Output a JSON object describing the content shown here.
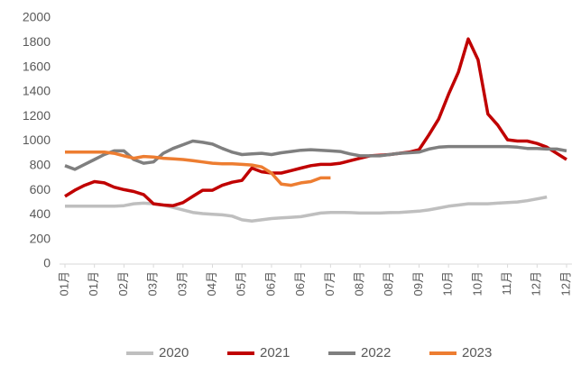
{
  "chart_data": {
    "type": "line",
    "categories": [
      "01月",
      null,
      null,
      "01月",
      null,
      null,
      "02月",
      null,
      null,
      "03月",
      null,
      null,
      "03月",
      null,
      null,
      "04月",
      null,
      null,
      "05月",
      null,
      null,
      "06月",
      null,
      null,
      "06月",
      null,
      null,
      "07月",
      null,
      null,
      "08月",
      null,
      null,
      "08月",
      null,
      null,
      "09月",
      null,
      null,
      "10月",
      null,
      null,
      "10月",
      null,
      null,
      "11月",
      null,
      null,
      "12月",
      null,
      null,
      "12月"
    ],
    "series": [
      {
        "name": "2020",
        "color": "#bfbfbf",
        "values": [
          470,
          470,
          470,
          470,
          470,
          470,
          475,
          490,
          495,
          490,
          480,
          460,
          440,
          420,
          410,
          405,
          400,
          390,
          360,
          350,
          360,
          370,
          375,
          380,
          385,
          400,
          415,
          420,
          420,
          418,
          415,
          415,
          415,
          418,
          420,
          425,
          430,
          440,
          455,
          470,
          480,
          490,
          490,
          490,
          495,
          500,
          505,
          515,
          530,
          545,
          null,
          null
        ]
      },
      {
        "name": "2021",
        "color": "#c00000",
        "values": [
          550,
          600,
          640,
          670,
          660,
          625,
          605,
          590,
          565,
          490,
          480,
          475,
          500,
          550,
          600,
          600,
          640,
          665,
          680,
          780,
          750,
          740,
          740,
          760,
          780,
          800,
          810,
          810,
          820,
          840,
          860,
          880,
          885,
          890,
          900,
          910,
          930,
          1050,
          1180,
          1380,
          1560,
          1830,
          1660,
          1220,
          1130,
          1010,
          1000,
          1000,
          980,
          950,
          900,
          850
        ]
      },
      {
        "name": "2022",
        "color": "#7f7f7f",
        "values": [
          800,
          770,
          810,
          850,
          890,
          920,
          920,
          850,
          820,
          830,
          900,
          940,
          970,
          1000,
          990,
          975,
          940,
          910,
          890,
          895,
          900,
          890,
          905,
          915,
          925,
          930,
          925,
          920,
          915,
          895,
          880,
          880,
          880,
          890,
          900,
          905,
          910,
          935,
          950,
          955,
          955,
          955,
          955,
          955,
          955,
          955,
          950,
          940,
          940,
          935,
          935,
          920
        ]
      },
      {
        "name": "2023",
        "color": "#ed7d31",
        "values": [
          910,
          910,
          910,
          910,
          910,
          900,
          880,
          860,
          875,
          870,
          860,
          855,
          850,
          840,
          830,
          820,
          815,
          815,
          810,
          805,
          790,
          740,
          650,
          640,
          660,
          670,
          700,
          700,
          null,
          null,
          null,
          null,
          null,
          null,
          null,
          null,
          null,
          null,
          null,
          null,
          null,
          null,
          null,
          null,
          null,
          null,
          null,
          null,
          null,
          null,
          null,
          null
        ]
      }
    ],
    "ylim": [
      0,
      2000
    ],
    "yticks": [
      0,
      200,
      400,
      600,
      800,
      1000,
      1200,
      1400,
      1600,
      1800,
      2000
    ],
    "legend": "bottom"
  }
}
